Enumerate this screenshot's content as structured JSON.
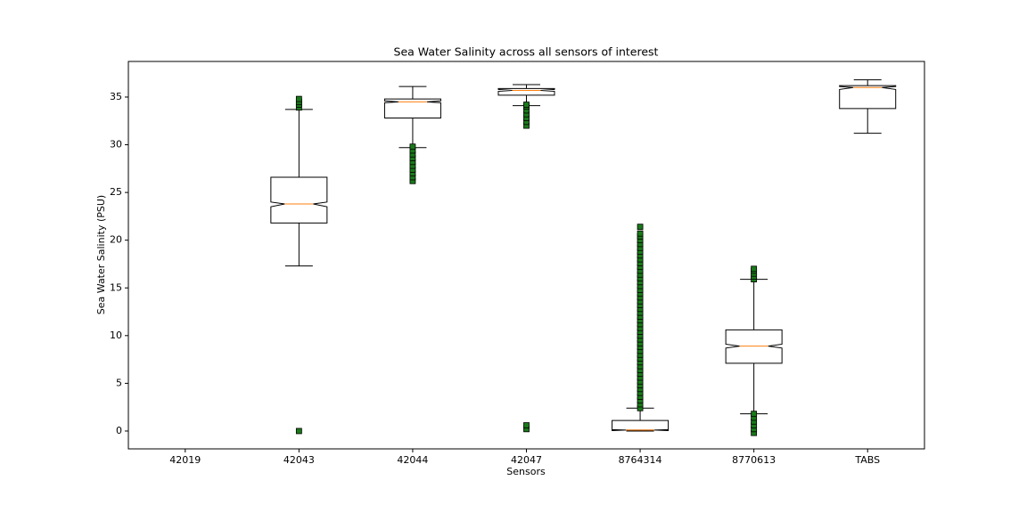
{
  "chart_data": {
    "type": "boxplot",
    "title": "Sea Water Salinity across all sensors of interest",
    "x_label": "Sensors",
    "y_label": "Sea Water Salinity (PSU)",
    "categories": [
      "42019",
      "42043",
      "42044",
      "42047",
      "8764314",
      "8770613",
      "TABS"
    ],
    "boxes": [
      null,
      {
        "low": 17.3,
        "q1": 21.8,
        "median": 23.8,
        "q3": 26.6,
        "high": 33.7,
        "notch": [
          23.5,
          24.0
        ],
        "outliers": [
          0.0,
          33.9,
          34.2,
          34.5,
          34.8
        ]
      },
      {
        "low": 29.7,
        "q1": 32.8,
        "median": 34.5,
        "q3": 34.8,
        "high": 36.1,
        "notch": [
          34.4,
          34.6
        ],
        "outliers": [
          26.2,
          26.6,
          27.0,
          27.4,
          27.8,
          28.2,
          28.6,
          29.0,
          29.4,
          29.8
        ]
      },
      {
        "low": 34.1,
        "q1": 35.2,
        "median": 35.7,
        "q3": 35.9,
        "high": 36.3,
        "notch": [
          35.6,
          35.8
        ],
        "outliers": [
          0.2,
          0.6,
          32.0,
          32.4,
          32.8,
          33.2,
          33.6,
          34.0,
          34.2
        ]
      },
      {
        "low": 0.0,
        "q1": 0.1,
        "median": 0.1,
        "q3": 1.1,
        "high": 2.4,
        "notch": [
          0.05,
          0.15
        ],
        "outliers": [
          2.4,
          2.8,
          3.2,
          3.6,
          4.0,
          4.4,
          4.8,
          5.2,
          5.6,
          6.0,
          6.4,
          6.8,
          7.2,
          7.6,
          8.0,
          8.4,
          8.8,
          9.2,
          9.6,
          10.0,
          10.4,
          10.8,
          11.2,
          11.6,
          12.0,
          12.4,
          12.8,
          13.2,
          13.6,
          14.0,
          14.4,
          14.8,
          15.2,
          15.6,
          16.0,
          16.4,
          16.8,
          17.2,
          17.6,
          18.0,
          18.4,
          18.8,
          19.2,
          19.6,
          20.0,
          20.4,
          20.7,
          21.4
        ]
      },
      {
        "low": 1.8,
        "q1": 7.1,
        "median": 8.9,
        "q3": 10.6,
        "high": 15.9,
        "notch": [
          8.7,
          9.1
        ],
        "outliers": [
          -0.2,
          0.2,
          0.6,
          1.0,
          1.4,
          1.8,
          15.9,
          16.2,
          16.5,
          16.8,
          17.0
        ]
      },
      {
        "low": 31.2,
        "q1": 33.8,
        "median": 36.0,
        "q3": 36.2,
        "high": 36.8,
        "notch": [
          35.8,
          36.1
        ],
        "outliers": []
      }
    ],
    "median_color": "#ff7f0e",
    "outlier_color": "#1a7a1a",
    "ylim": [
      -1.87,
      38.73
    ],
    "yticks": [
      0,
      5,
      10,
      15,
      20,
      25,
      30,
      35
    ]
  }
}
